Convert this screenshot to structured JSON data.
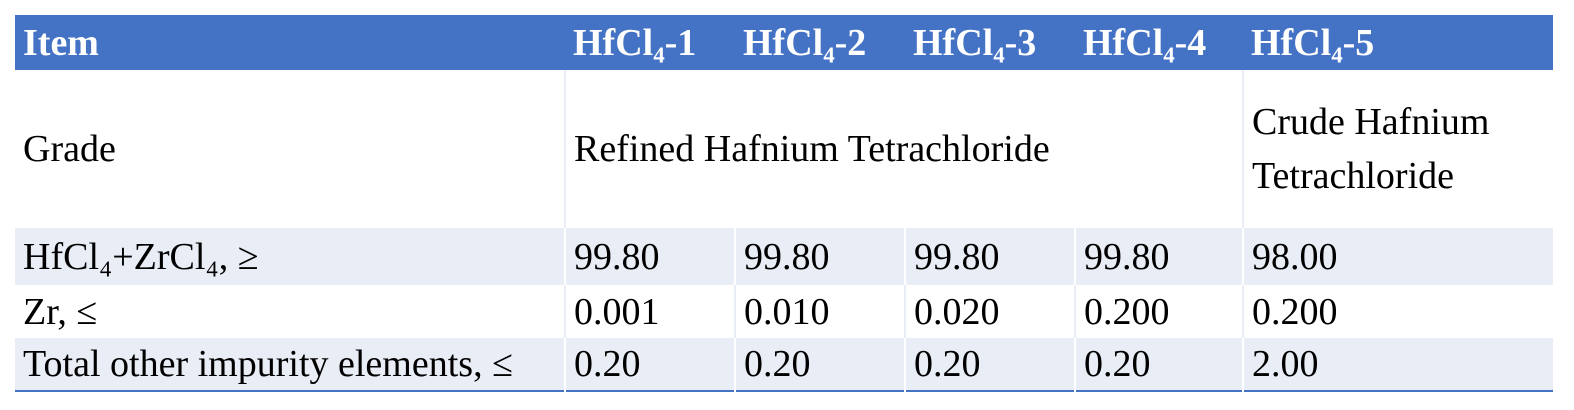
{
  "table": {
    "header": [
      "Item",
      "HfCl₄-1",
      "HfCl₄-2",
      "HfCl₄-3",
      "HfCl₄-4",
      "HfCl₄-5"
    ],
    "rows": [
      [
        "Grade",
        "Refined Hafnium Tetrachloride",
        "Crude Hafnium Tetrachloride"
      ],
      [
        "HfCl₄+ZrCl₄, ≥",
        "99.80",
        "99.80",
        "99.80",
        "99.80",
        "98.00"
      ],
      [
        "Zr, ≤",
        "0.001",
        "0.010",
        "0.020",
        "0.200",
        "0.200"
      ],
      [
        "Total other impurity elements, ≤",
        "0.20",
        "0.20",
        "0.20",
        "0.20",
        "2.00"
      ]
    ]
  }
}
